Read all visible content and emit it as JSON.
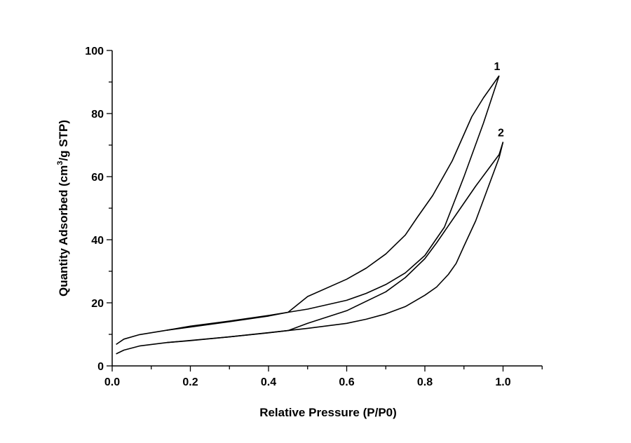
{
  "chart_data": {
    "type": "line",
    "title": "",
    "xlabel": "Relative Pressure (P/P0)",
    "ylabel_parts": [
      "Quantity Adsorbed (cm",
      "3",
      "/g STP)"
    ],
    "xlim": [
      0,
      1.1
    ],
    "ylim": [
      0,
      100
    ],
    "xticks": [
      0.0,
      0.2,
      0.4,
      0.6,
      0.8,
      1.0
    ],
    "xtick_labels": [
      "0.0",
      "0.2",
      "0.4",
      "0.6",
      "0.8",
      "1.0"
    ],
    "yticks": [
      0,
      20,
      40,
      60,
      80,
      100
    ],
    "ytick_labels": [
      "0",
      "20",
      "40",
      "60",
      "80",
      "100"
    ],
    "grid": false,
    "series": [
      {
        "name": "1",
        "label_at": [
          0.99,
          92
        ],
        "adsorption": {
          "x": [
            0.01,
            0.03,
            0.07,
            0.14,
            0.2,
            0.3,
            0.4,
            0.45,
            0.5,
            0.6,
            0.65,
            0.7,
            0.75,
            0.8,
            0.85,
            0.9,
            0.95,
            0.99
          ],
          "y": [
            6.8,
            8.5,
            9.9,
            11.3,
            12.3,
            14,
            15.8,
            17,
            18,
            20.8,
            23,
            25.8,
            29.5,
            35,
            44,
            60,
            77,
            92
          ]
        },
        "desorption": {
          "x": [
            0.99,
            0.95,
            0.92,
            0.87,
            0.82,
            0.78,
            0.75,
            0.7,
            0.65,
            0.6,
            0.5,
            0.45,
            0.4,
            0.3,
            0.2,
            0.14
          ],
          "y": [
            92,
            85,
            79,
            65,
            54,
            47,
            41.5,
            35.5,
            31,
            27.5,
            22,
            17,
            16,
            14.2,
            12.6,
            11.3
          ]
        }
      },
      {
        "name": "2",
        "label_at": [
          1.0,
          71
        ],
        "adsorption": {
          "x": [
            0.01,
            0.03,
            0.07,
            0.14,
            0.2,
            0.3,
            0.4,
            0.45,
            0.5,
            0.6,
            0.65,
            0.7,
            0.75,
            0.8,
            0.83,
            0.86,
            0.88,
            0.9,
            0.93,
            0.96,
            0.99,
            1.0
          ],
          "y": [
            3.8,
            5,
            6.3,
            7.4,
            8,
            9.2,
            10.5,
            11.2,
            11.9,
            13.5,
            14.8,
            16.5,
            18.8,
            22.4,
            25,
            29,
            32.5,
            38,
            46,
            56,
            66,
            71
          ]
        },
        "desorption": {
          "x": [
            1.0,
            0.99,
            0.96,
            0.93,
            0.88,
            0.83,
            0.8,
            0.75,
            0.7,
            0.6,
            0.5,
            0.45,
            0.3,
            0.14
          ],
          "y": [
            71,
            67,
            62,
            57,
            48,
            39,
            34,
            28,
            23.5,
            17.5,
            13.5,
            11.2,
            9.2,
            7.4
          ]
        }
      }
    ]
  }
}
